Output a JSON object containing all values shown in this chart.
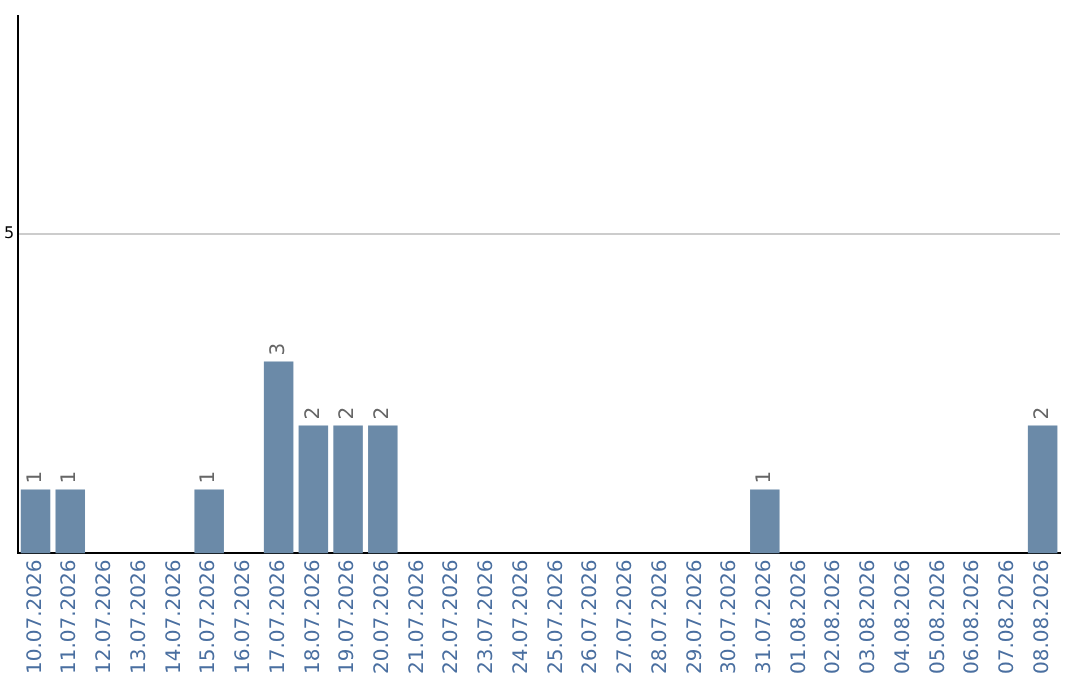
{
  "chart_data": {
    "type": "bar",
    "categories": [
      "10.07.2026",
      "11.07.2026",
      "12.07.2026",
      "13.07.2026",
      "14.07.2026",
      "15.07.2026",
      "16.07.2026",
      "17.07.2026",
      "18.07.2026",
      "19.07.2026",
      "20.07.2026",
      "21.07.2026",
      "22.07.2026",
      "23.07.2026",
      "24.07.2026",
      "25.07.2026",
      "26.07.2026",
      "27.07.2026",
      "28.07.2026",
      "29.07.2026",
      "30.07.2026",
      "31.07.2026",
      "01.08.2026",
      "02.08.2026",
      "03.08.2026",
      "04.08.2026",
      "05.08.2026",
      "06.08.2026",
      "07.08.2026",
      "08.08.2026"
    ],
    "values": [
      1,
      1,
      0,
      0,
      0,
      1,
      0,
      3,
      2,
      2,
      2,
      0,
      0,
      0,
      0,
      0,
      0,
      0,
      0,
      0,
      0,
      1,
      0,
      0,
      0,
      0,
      0,
      0,
      0,
      2
    ],
    "value_labels": [
      "1",
      "1",
      null,
      null,
      null,
      "1",
      null,
      "3",
      "2",
      "2",
      "2",
      null,
      null,
      null,
      null,
      null,
      null,
      null,
      null,
      null,
      null,
      "1",
      null,
      null,
      null,
      null,
      null,
      null,
      null,
      "2"
    ],
    "color": "#6b8aa8",
    "ylim": [
      0,
      8.4
    ],
    "yticks": [
      5
    ],
    "grid": "y",
    "legend": false
  }
}
